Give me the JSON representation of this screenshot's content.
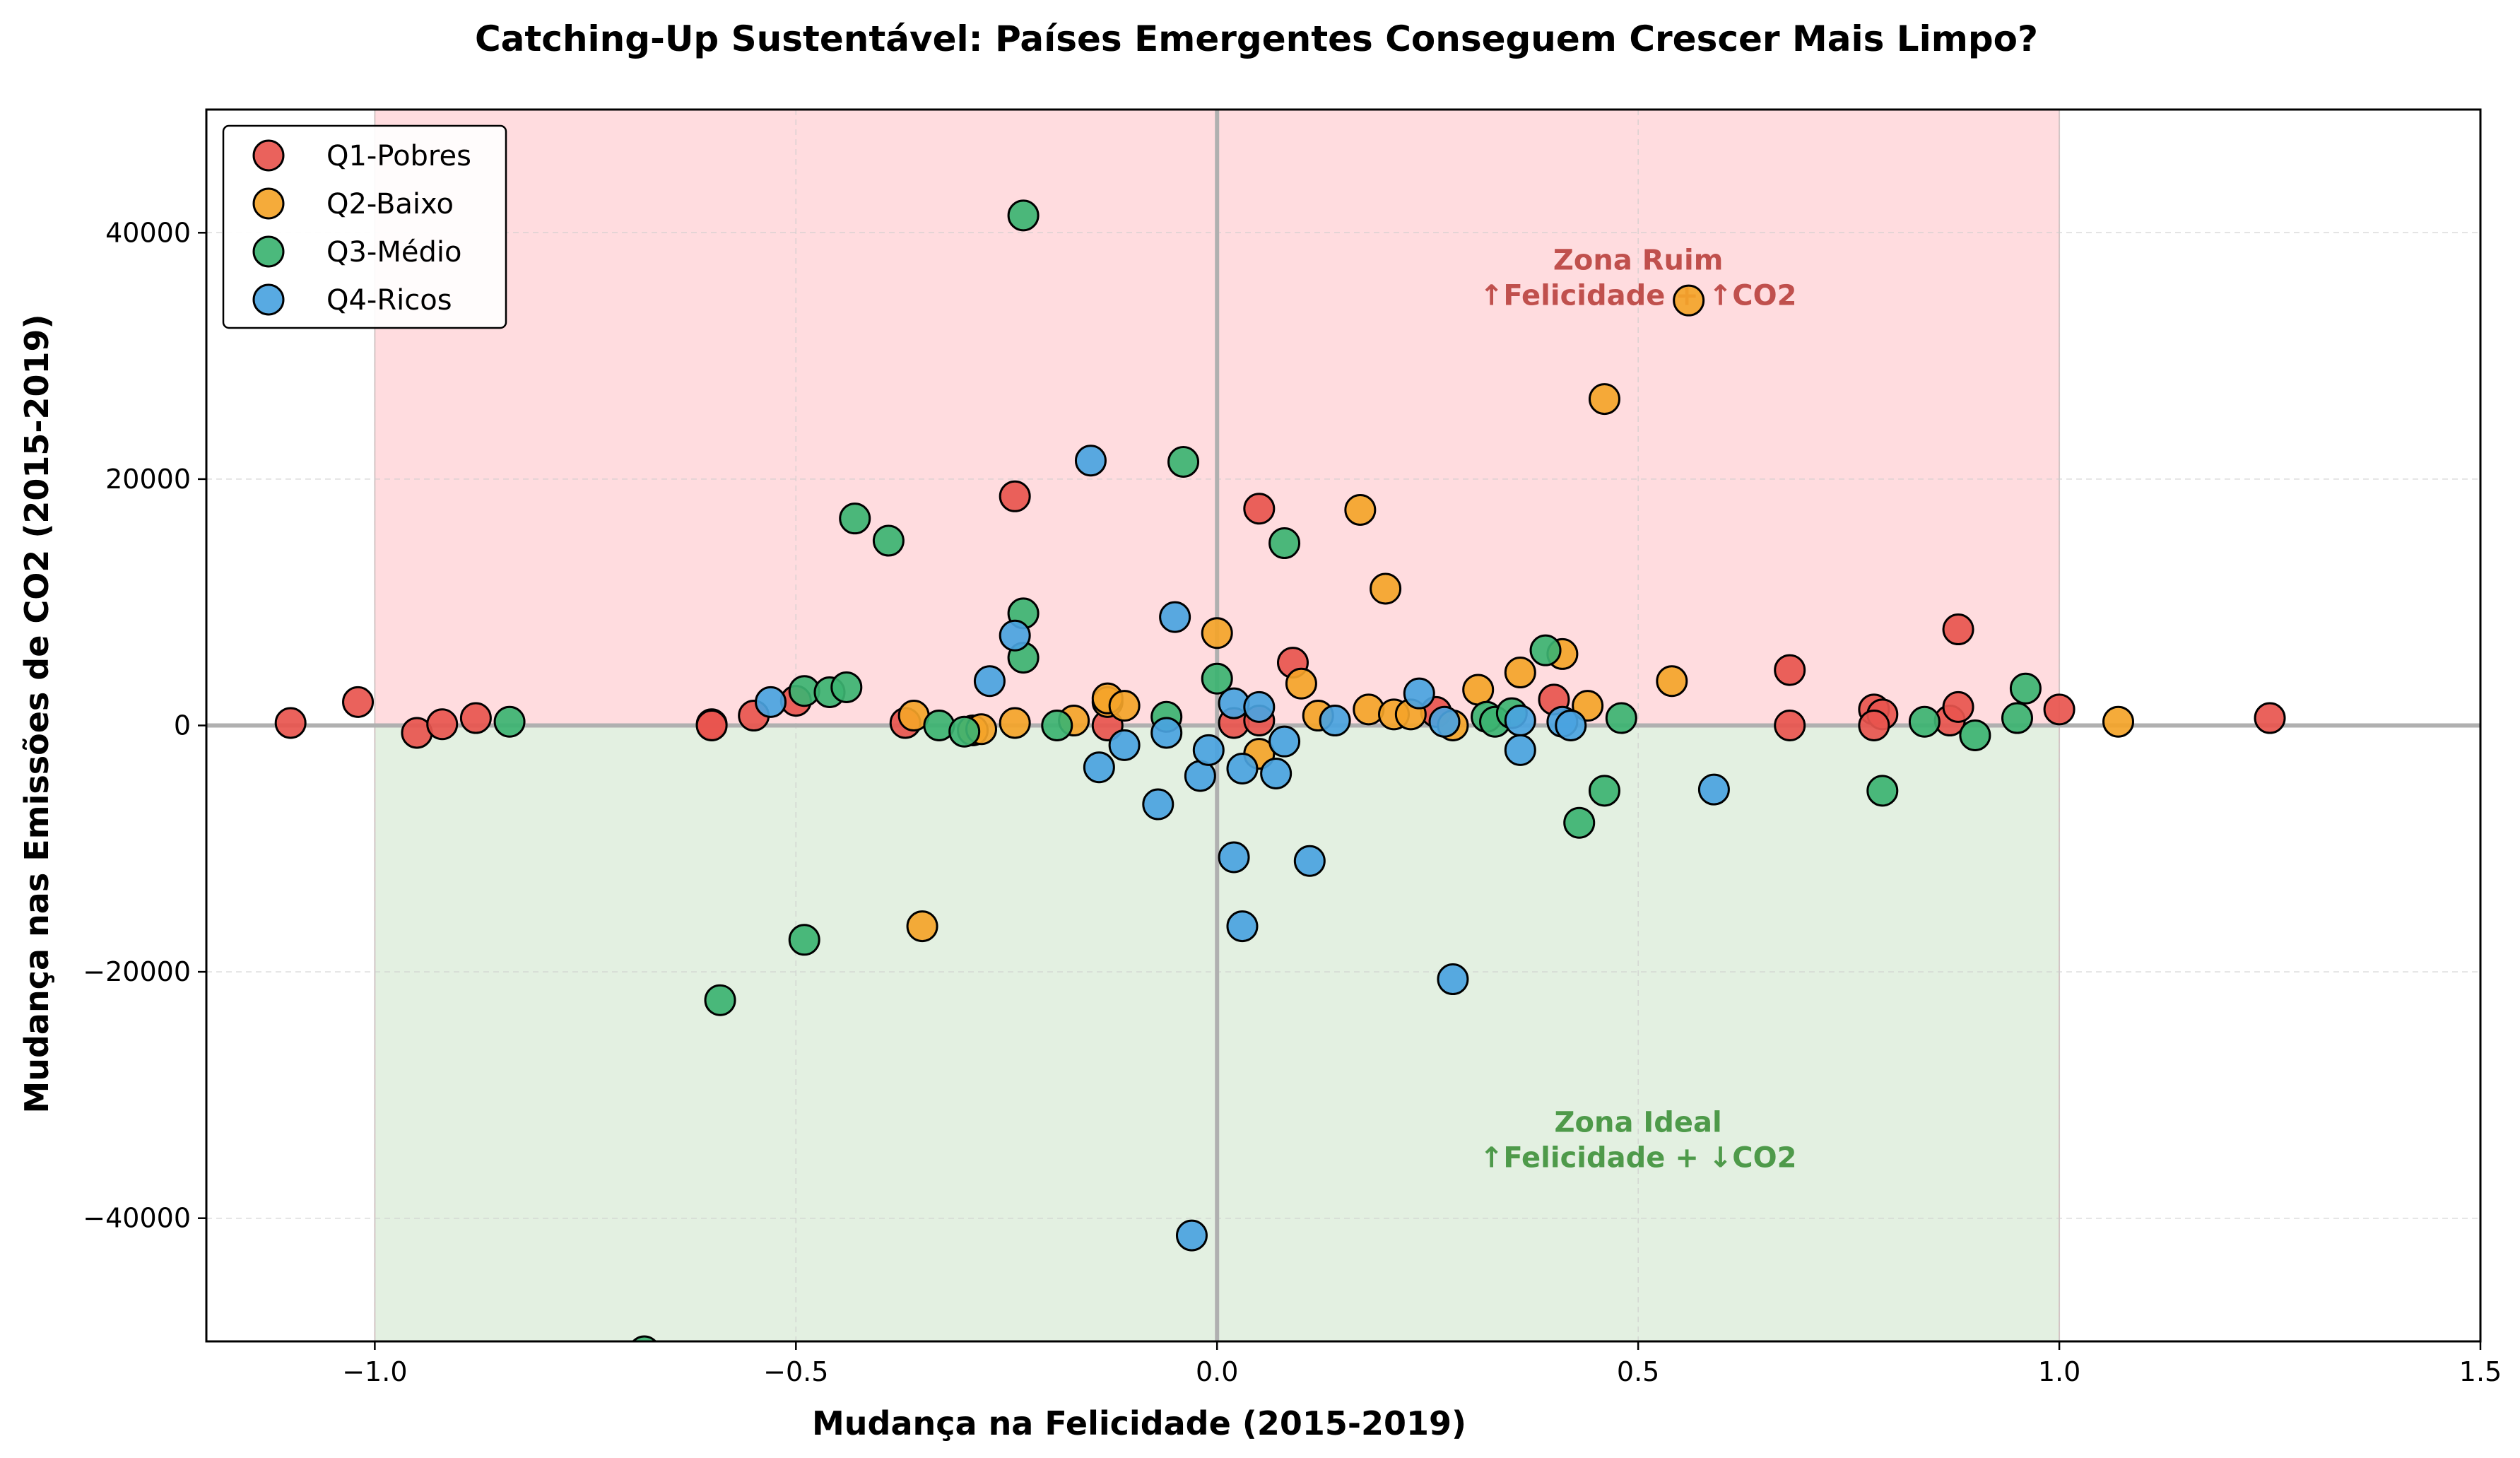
{
  "chart_data": {
    "type": "scatter",
    "title": "Catching-Up Sustentável: Países Emergentes Conseguem Crescer Mais Limpo?",
    "xlabel": "Mudança na Felicidade (2015-2019)",
    "ylabel": "Mudança nas Emissões de CO2 (2015-2019)",
    "xlim": [
      -1.2,
      1.5
    ],
    "ylim": [
      -50000,
      50000
    ],
    "x_ticks": [
      -1.0,
      -0.5,
      0.0,
      0.5,
      1.0,
      1.5
    ],
    "x_tick_labels": [
      "−1.0",
      "−0.5",
      "0.0",
      "0.5",
      "1.0",
      "1.5"
    ],
    "y_ticks": [
      -40000,
      -20000,
      0,
      20000,
      40000
    ],
    "y_tick_labels": [
      "−40000",
      "−20000",
      "0",
      "20000",
      "40000"
    ],
    "grid": true,
    "legend_position": "top-left",
    "zones": {
      "x_range": [
        -1.0,
        1.0
      ],
      "bad_color": "#ffdcdf",
      "good_color": "#e3f0e1"
    },
    "annotations": [
      {
        "lines": [
          "Zona Ruim",
          "↑Felicidade + ↑CO2"
        ],
        "x": 0.5,
        "y": 37000,
        "color": "#c0504d"
      },
      {
        "lines": [
          "Zona Ideal",
          "↑Felicidade + ↓CO2"
        ],
        "x": 0.5,
        "y": -33000,
        "color": "#4e9a4a"
      }
    ],
    "series": [
      {
        "name": "Q1-Pobres",
        "color": "#e8554e",
        "points": [
          [
            -1.1,
            200
          ],
          [
            -1.02,
            1900
          ],
          [
            -0.95,
            -600
          ],
          [
            -0.92,
            100
          ],
          [
            -0.88,
            600
          ],
          [
            -0.6,
            100
          ],
          [
            -0.6,
            0
          ],
          [
            -0.55,
            800
          ],
          [
            -0.5,
            2000
          ],
          [
            -0.37,
            200
          ],
          [
            -0.24,
            18600
          ],
          [
            -0.13,
            0
          ],
          [
            0.02,
            200
          ],
          [
            0.05,
            17600
          ],
          [
            0.05,
            400
          ],
          [
            0.09,
            5100
          ],
          [
            0.26,
            1100
          ],
          [
            0.4,
            2100
          ],
          [
            0.68,
            4500
          ],
          [
            0.68,
            0
          ],
          [
            0.78,
            1300
          ],
          [
            0.79,
            900
          ],
          [
            0.78,
            0
          ],
          [
            0.87,
            400
          ],
          [
            0.88,
            1500
          ],
          [
            0.88,
            7800
          ],
          [
            1.0,
            1300
          ],
          [
            1.25,
            600
          ]
        ]
      },
      {
        "name": "Q2-Baixo",
        "color": "#f4a429",
        "points": [
          [
            -0.36,
            800
          ],
          [
            -0.35,
            -16300
          ],
          [
            -0.29,
            -400
          ],
          [
            -0.28,
            -300
          ],
          [
            -0.24,
            200
          ],
          [
            -0.17,
            400
          ],
          [
            -0.13,
            1900
          ],
          [
            -0.13,
            2200
          ],
          [
            -0.11,
            1600
          ],
          [
            0.0,
            7500
          ],
          [
            0.05,
            -2300
          ],
          [
            0.1,
            3400
          ],
          [
            0.12,
            800
          ],
          [
            0.17,
            17500
          ],
          [
            0.18,
            1300
          ],
          [
            0.2,
            11100
          ],
          [
            0.21,
            900
          ],
          [
            0.23,
            900
          ],
          [
            0.28,
            0
          ],
          [
            0.31,
            2900
          ],
          [
            0.36,
            4300
          ],
          [
            0.41,
            5800
          ],
          [
            0.44,
            1600
          ],
          [
            0.46,
            26500
          ],
          [
            0.54,
            3600
          ],
          [
            0.56,
            34500
          ],
          [
            1.07,
            300
          ]
        ]
      },
      {
        "name": "Q3-Médio",
        "color": "#3cb371",
        "points": [
          [
            -0.84,
            300
          ],
          [
            -0.68,
            -50800
          ],
          [
            -0.59,
            -22300
          ],
          [
            -0.49,
            2800
          ],
          [
            -0.49,
            -17400
          ],
          [
            -0.46,
            2700
          ],
          [
            -0.44,
            3100
          ],
          [
            -0.43,
            16800
          ],
          [
            -0.39,
            15000
          ],
          [
            -0.33,
            0
          ],
          [
            -0.3,
            -500
          ],
          [
            -0.23,
            41400
          ],
          [
            -0.23,
            9100
          ],
          [
            -0.23,
            5500
          ],
          [
            -0.19,
            0
          ],
          [
            -0.06,
            700
          ],
          [
            -0.04,
            21400
          ],
          [
            0.0,
            3800
          ],
          [
            0.08,
            14800
          ],
          [
            0.32,
            700
          ],
          [
            0.33,
            300
          ],
          [
            0.35,
            1000
          ],
          [
            0.39,
            6100
          ],
          [
            0.43,
            -7900
          ],
          [
            0.46,
            -5300
          ],
          [
            0.48,
            600
          ],
          [
            0.79,
            -5300
          ],
          [
            0.84,
            300
          ],
          [
            0.9,
            -800
          ],
          [
            0.95,
            600
          ],
          [
            0.96,
            3000
          ]
        ]
      },
      {
        "name": "Q4-Ricos",
        "color": "#4aa3df",
        "points": [
          [
            -0.53,
            1900
          ],
          [
            -0.27,
            3600
          ],
          [
            -0.24,
            7300
          ],
          [
            -0.15,
            21500
          ],
          [
            -0.14,
            -3400
          ],
          [
            -0.11,
            -1600
          ],
          [
            -0.07,
            -6400
          ],
          [
            -0.06,
            -600
          ],
          [
            -0.05,
            8800
          ],
          [
            -0.03,
            -41400
          ],
          [
            -0.02,
            -4100
          ],
          [
            -0.01,
            -2000
          ],
          [
            0.02,
            -10700
          ],
          [
            0.02,
            1800
          ],
          [
            0.03,
            -16300
          ],
          [
            0.03,
            -3500
          ],
          [
            0.05,
            1500
          ],
          [
            0.07,
            -3900
          ],
          [
            0.08,
            -1300
          ],
          [
            0.11,
            -11000
          ],
          [
            0.14,
            400
          ],
          [
            0.24,
            2600
          ],
          [
            0.27,
            300
          ],
          [
            0.28,
            -20600
          ],
          [
            0.36,
            400
          ],
          [
            0.36,
            -2000
          ],
          [
            0.41,
            300
          ],
          [
            0.42,
            0
          ],
          [
            0.59,
            -5200
          ]
        ]
      }
    ]
  }
}
